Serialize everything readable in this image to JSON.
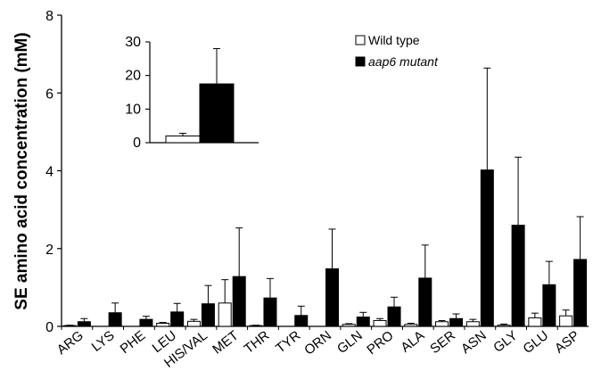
{
  "chart_data": [
    {
      "type": "bar",
      "role": "main",
      "ylabel": "SE amino acid concentration (mM)",
      "xlabel": "",
      "ylim": [
        0,
        8
      ],
      "yticks": [
        "0",
        "2",
        "4",
        "6",
        "8"
      ],
      "categories": [
        "ARG",
        "LYS",
        "PHE",
        "LEU",
        "HIS/VAL",
        "MET",
        "THR",
        "TYR",
        "ORN",
        "GLN",
        "PRO",
        "ALA",
        "SER",
        "ASN",
        "GLY",
        "GLU",
        "ASP"
      ],
      "series": [
        {
          "name": "Wild type",
          "color": "#ffffff",
          "values": [
            0.02,
            0.0,
            0.0,
            0.08,
            0.13,
            0.6,
            0.02,
            0.0,
            0.0,
            0.05,
            0.15,
            0.05,
            0.12,
            0.12,
            0.03,
            0.22,
            0.27
          ],
          "errors": [
            0.01,
            0.0,
            0.0,
            0.02,
            0.05,
            0.6,
            0.01,
            0.0,
            0.0,
            0.02,
            0.05,
            0.03,
            0.03,
            0.06,
            0.03,
            0.12,
            0.15
          ]
        },
        {
          "name": "aap6 mutant",
          "color": "#000000",
          "values": [
            0.12,
            0.35,
            0.18,
            0.37,
            0.58,
            1.28,
            0.73,
            0.28,
            1.48,
            0.24,
            0.5,
            1.24,
            0.2,
            4.02,
            2.6,
            1.07,
            1.72
          ],
          "errors": [
            0.08,
            0.25,
            0.08,
            0.22,
            0.47,
            1.25,
            0.5,
            0.24,
            1.02,
            0.12,
            0.25,
            0.85,
            0.12,
            2.62,
            1.75,
            0.6,
            1.1
          ]
        }
      ],
      "legend": "top-right"
    },
    {
      "type": "bar",
      "role": "inset",
      "ylim": [
        0,
        30
      ],
      "yticks": [
        "0",
        "10",
        "20",
        "30"
      ],
      "categories": [
        ""
      ],
      "series": [
        {
          "name": "Wild type",
          "color": "#ffffff",
          "values": [
            2.0
          ],
          "errors": [
            0.8
          ]
        },
        {
          "name": "aap6 mutant",
          "color": "#000000",
          "values": [
            17.5
          ],
          "errors": [
            10.5
          ]
        }
      ]
    }
  ]
}
